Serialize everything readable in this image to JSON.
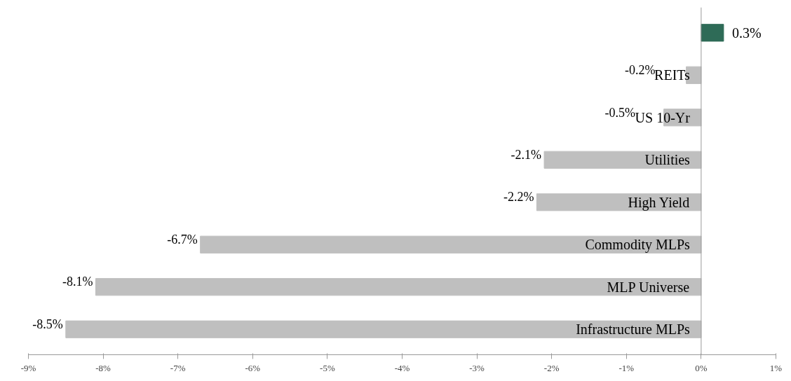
{
  "chart_data": {
    "type": "bar",
    "orientation": "horizontal",
    "categories": [
      null,
      "REITs",
      "US 10-Yr",
      "Utilities",
      "High Yield",
      "Commodity MLPs",
      "MLP Universe",
      "Infrastructure MLPs"
    ],
    "values": [
      0.3,
      -0.2,
      -0.5,
      -2.1,
      -2.2,
      -6.7,
      -8.1,
      -8.5
    ],
    "colors": [
      "#2e6b57",
      "#bfbfbf",
      "#bfbfbf",
      "#bfbfbf",
      "#bfbfbf",
      "#bfbfbf",
      "#bfbfbf",
      "#bfbfbf"
    ],
    "value_labels": [
      "0.3%",
      "-0.2%",
      "-0.5%",
      "-2.1%",
      "-2.2%",
      "-6.7%",
      "-8.1%",
      "-8.5%"
    ],
    "xlim": [
      -9,
      1
    ],
    "xticks": [
      {
        "value": -9,
        "label": "-9%"
      },
      {
        "value": -8,
        "label": "-8%"
      },
      {
        "value": -7,
        "label": "-7%"
      },
      {
        "value": -6,
        "label": "-6%"
      },
      {
        "value": -5,
        "label": "-5%"
      },
      {
        "value": -4,
        "label": "-4%"
      },
      {
        "value": -3,
        "label": "-3%"
      },
      {
        "value": -2,
        "label": "-2%"
      },
      {
        "value": -1,
        "label": "-1%"
      },
      {
        "value": 0,
        "label": "0%"
      },
      {
        "value": 1,
        "label": "1%"
      }
    ],
    "grid": false
  }
}
